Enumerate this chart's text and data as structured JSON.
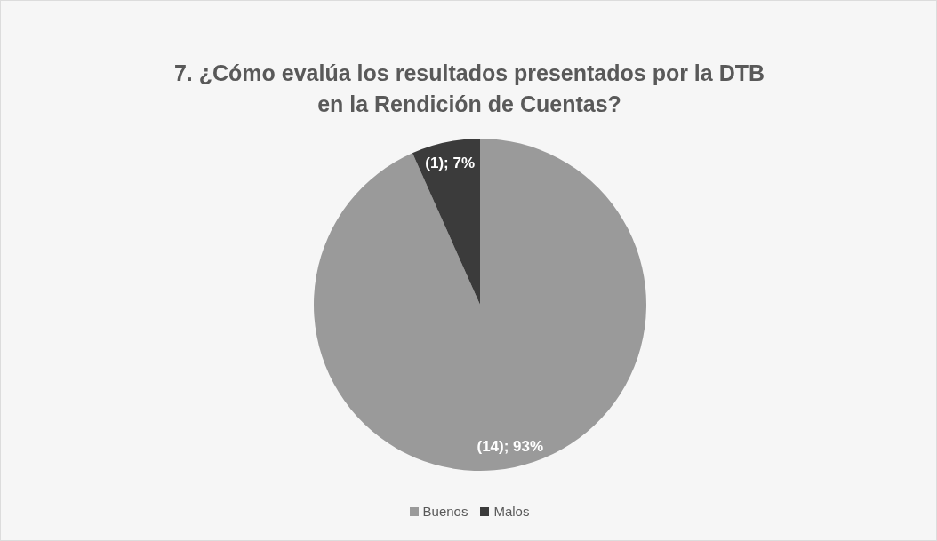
{
  "chart_data": {
    "type": "pie",
    "title": "7. ¿Cómo evalúa los resultados presentados por la DTB en la Rendición de Cuentas?",
    "categories": [
      "Buenos",
      "Malos"
    ],
    "values": [
      14,
      1
    ],
    "colors": [
      "#9a9a9a",
      "#3b3b3b"
    ],
    "value_labels": [
      "(14); 93%",
      "(1); 7%"
    ],
    "legend": "bottom"
  }
}
